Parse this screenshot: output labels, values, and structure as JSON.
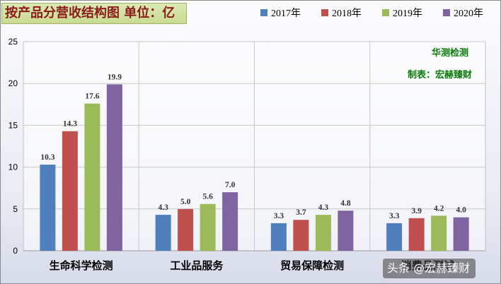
{
  "chart_data": {
    "type": "bar",
    "title": "按产品分营收结构图 单位：亿",
    "categories": [
      "生命科学检测",
      "工业品服务",
      "贸易保障检测",
      "消费品测试"
    ],
    "series": [
      {
        "name": "2017年",
        "values": [
          10.3,
          4.3,
          3.3,
          3.3
        ],
        "color": "#4f7fbd"
      },
      {
        "name": "2018年",
        "values": [
          14.3,
          5.0,
          3.7,
          3.9
        ],
        "color": "#c0504d"
      },
      {
        "name": "2019年",
        "values": [
          17.6,
          5.6,
          4.3,
          4.2
        ],
        "color": "#9bbb59"
      },
      {
        "name": "2020年",
        "values": [
          19.9,
          7.0,
          4.8,
          4.0
        ],
        "color": "#8064a2"
      }
    ],
    "ylim": [
      0,
      25
    ],
    "yticks": [
      "0",
      "5",
      "10",
      "15",
      "20",
      "25"
    ],
    "grid": true,
    "legend_position": "top",
    "annotations": [
      "华测检测",
      "制表：宏赫臻财"
    ]
  },
  "watermark": "头条 @宏赫臻财"
}
